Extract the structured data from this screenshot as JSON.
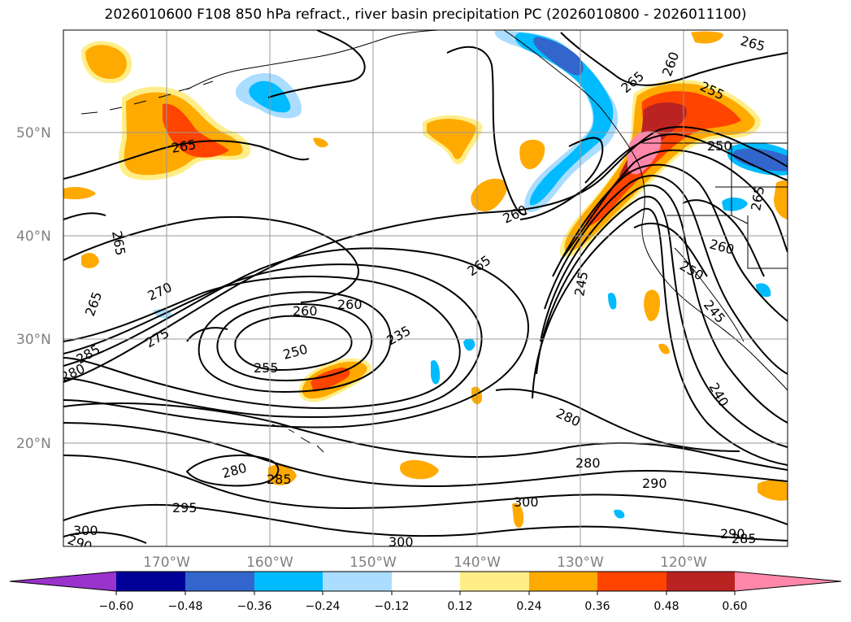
{
  "title": "2026010600 F108 850 hPa refract., river basin precipitation PC (2026010800 - 2026011100)",
  "lat_labels": [
    "50°N",
    "40°N",
    "30°N",
    "20°N"
  ],
  "lon_labels": [
    "170°W",
    "160°W",
    "150°W",
    "140°W",
    "130°W",
    "120°W"
  ],
  "contour_labels": [
    "265",
    "265",
    "265",
    "265",
    "265",
    "265",
    "265",
    "260",
    "260",
    "260",
    "260",
    "260",
    "255",
    "255",
    "250",
    "250",
    "250",
    "245",
    "245",
    "240",
    "235",
    "270",
    "275",
    "280",
    "280",
    "280",
    "280",
    "285",
    "285",
    "285",
    "290",
    "290",
    "290",
    "295",
    "300",
    "300",
    "300"
  ],
  "colorbar": {
    "ticks": [
      "−0.60",
      "−0.48",
      "−0.36",
      "−0.24",
      "−0.12",
      "0.12",
      "0.24",
      "0.36",
      "0.48",
      "0.60"
    ],
    "colors": [
      "#9933cc",
      "#000099",
      "#3366cc",
      "#00bbff",
      "#aaddff",
      "#ffffff",
      "#ffee88",
      "#ffaa00",
      "#ff4400",
      "#bb2222",
      "#ff88aa"
    ]
  },
  "colors": {
    "land_outline": "#000000",
    "grid": "#999999",
    "contour": "#000000"
  }
}
